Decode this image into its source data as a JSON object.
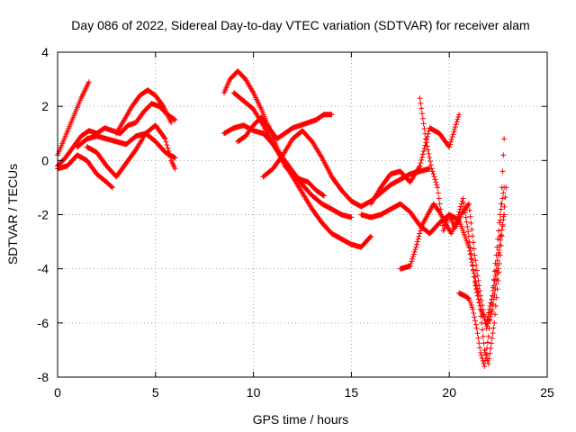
{
  "chart_data": {
    "type": "scatter",
    "title": "Day 086 of 2022, Sidereal Day-to-day VTEC variation (SDTVAR) for receiver alam",
    "xlabel": "GPS time / hours",
    "ylabel": "SDTVAR / TECUs",
    "xlim": [
      0,
      25
    ],
    "ylim": [
      -8,
      4
    ],
    "x_ticks": [
      "0",
      "5",
      "10",
      "15",
      "20",
      "25"
    ],
    "y_ticks": [
      "-8",
      "-6",
      "-4",
      "-2",
      "0",
      "2",
      "4"
    ],
    "grid": true,
    "marker": "+",
    "color": "#ff0000",
    "series": [
      {
        "segments": [
          {
            "x": [
              0.0,
              0.4,
              0.8,
              1.2,
              1.6
            ],
            "y": [
              0.2,
              0.9,
              1.6,
              2.3,
              2.9
            ]
          },
          {
            "x": [
              0.0,
              0.4,
              0.8,
              1.2,
              1.6,
              2.0,
              2.4,
              2.8,
              3.2,
              3.6,
              4.0,
              4.4,
              4.8,
              5.2,
              5.6,
              6.0
            ],
            "y": [
              -0.2,
              0.1,
              0.5,
              0.9,
              1.1,
              1.0,
              1.2,
              1.1,
              1.0,
              1.3,
              1.4,
              1.8,
              2.1,
              2.0,
              1.7,
              1.5
            ]
          },
          {
            "x": [
              0.0,
              0.5,
              1.0,
              1.5,
              2.0,
              2.5,
              2.8
            ],
            "y": [
              -0.3,
              -0.2,
              0.2,
              0.0,
              -0.5,
              -0.8,
              -1.0
            ]
          },
          {
            "x": [
              1.0,
              1.5,
              2.0,
              2.5,
              3.0,
              3.5,
              4.0,
              4.5,
              5.0,
              5.5,
              6.0
            ],
            "y": [
              0.5,
              0.8,
              0.9,
              0.8,
              0.7,
              0.6,
              0.9,
              1.0,
              0.7,
              0.3,
              0.1
            ]
          },
          {
            "x": [
              3.0,
              3.4,
              3.8,
              4.2,
              4.6,
              5.0,
              5.4,
              5.8
            ],
            "y": [
              1.0,
              1.5,
              2.0,
              2.4,
              2.6,
              2.4,
              2.0,
              1.4
            ]
          },
          {
            "x": [
              1.5,
              2.0,
              2.5,
              3.0,
              3.5,
              4.0,
              4.5,
              5.0,
              5.5,
              5.8,
              6.0
            ],
            "y": [
              0.5,
              0.3,
              -0.2,
              -0.6,
              -0.1,
              0.4,
              1.0,
              1.3,
              0.8,
              0.0,
              -0.3
            ]
          },
          {
            "x": [
              8.5,
              8.8,
              9.2,
              9.6,
              10.0,
              10.4,
              10.8,
              11.2,
              11.6,
              12.0,
              12.4,
              12.8,
              13.2,
              13.6,
              14.0
            ],
            "y": [
              2.5,
              3.0,
              3.3,
              3.0,
              2.5,
              1.9,
              1.2,
              0.8,
              1.0,
              1.2,
              1.3,
              1.4,
              1.5,
              1.7,
              1.7
            ]
          },
          {
            "x": [
              8.5,
              9.0,
              9.5,
              10.0,
              10.5,
              11.0,
              11.5,
              12.0,
              12.5,
              13.0,
              13.5,
              14.0,
              14.5,
              15.0
            ],
            "y": [
              1.0,
              1.2,
              1.3,
              1.1,
              1.0,
              0.6,
              0.1,
              -0.4,
              -0.9,
              -1.3,
              -1.6,
              -1.8,
              -2.0,
              -2.1
            ]
          },
          {
            "x": [
              9.0,
              9.5,
              10.0,
              10.5,
              11.0,
              11.5,
              12.0,
              12.5,
              13.0,
              13.5,
              14.0,
              14.5,
              15.0,
              15.5,
              16.0
            ],
            "y": [
              2.5,
              2.2,
              1.9,
              1.3,
              0.6,
              0.0,
              -0.6,
              -1.2,
              -1.8,
              -2.3,
              -2.7,
              -2.9,
              -3.1,
              -3.2,
              -2.8
            ]
          },
          {
            "x": [
              9.2,
              9.6,
              10.0,
              10.4,
              10.8,
              11.2,
              11.6,
              12.0,
              12.4,
              12.8,
              13.2,
              13.6
            ],
            "y": [
              0.7,
              0.9,
              1.3,
              1.6,
              1.2,
              0.5,
              -0.2,
              -0.5,
              -0.7,
              -0.8,
              -1.1,
              -1.3
            ]
          },
          {
            "x": [
              10.5,
              11.0,
              11.5,
              12.0,
              12.5,
              13.0,
              13.5,
              14.0,
              14.5,
              15.0,
              15.5,
              16.0,
              16.5,
              17.0,
              17.5,
              18.0,
              18.5,
              19.0
            ],
            "y": [
              -0.6,
              -0.3,
              0.2,
              0.8,
              1.1,
              0.7,
              0.1,
              -0.6,
              -1.1,
              -1.5,
              -1.7,
              -1.5,
              -1.2,
              -0.9,
              -0.7,
              -0.5,
              -0.4,
              -0.3
            ]
          },
          {
            "x": [
              15.5,
              16.0,
              16.5,
              17.0,
              17.5,
              18.0,
              18.5,
              19.0,
              19.5,
              20.0,
              20.5,
              21.0,
              21.5,
              21.8,
              22.0,
              22.3,
              22.6,
              22.9
            ],
            "y": [
              -2.0,
              -2.1,
              -2.0,
              -1.8,
              -1.6,
              -1.9,
              -2.4,
              -2.7,
              -2.3,
              -2.0,
              -2.2,
              -3.2,
              -5.0,
              -7.0,
              -7.5,
              -6.0,
              -3.5,
              -1.0
            ]
          },
          {
            "x": [
              16.0,
              16.5,
              17.0,
              17.5,
              18.0,
              18.5,
              19.0,
              19.5,
              20.0,
              20.5
            ],
            "y": [
              -1.6,
              -1.0,
              -0.5,
              -0.4,
              -0.8,
              -0.2,
              1.2,
              1.0,
              0.5,
              1.7
            ]
          },
          {
            "x": [
              17.5,
              18.0,
              18.3,
              18.6,
              18.9,
              19.2,
              19.5,
              19.8,
              20.1,
              20.4,
              20.7,
              21.0,
              21.3,
              21.6,
              21.9,
              22.2,
              22.5,
              22.8
            ],
            "y": [
              -4.0,
              -3.9,
              -3.2,
              -2.4,
              -2.0,
              -1.6,
              -1.9,
              -2.3,
              -2.7,
              -2.2,
              -1.4,
              -2.8,
              -4.5,
              -5.5,
              -6.0,
              -5.0,
              -3.5,
              -2.0
            ]
          },
          {
            "x": [
              18.5,
              18.8,
              19.1,
              19.4,
              19.7,
              20.0,
              20.3,
              20.6,
              21.0,
              21.3,
              21.6,
              21.9,
              22.2,
              22.5,
              22.8
            ],
            "y": [
              2.3,
              0.8,
              -0.3,
              -1.0,
              -2.6,
              -2.0,
              -2.5,
              -2.0,
              -1.6,
              -3.5,
              -5.0,
              -6.2,
              -5.5,
              -4.0,
              0.8
            ]
          },
          {
            "x": [
              20.5,
              20.8,
              21.0,
              21.2,
              21.4,
              21.6,
              21.8,
              22.0,
              22.2,
              22.4,
              22.6,
              22.8
            ],
            "y": [
              -4.9,
              -5.0,
              -5.1,
              -5.5,
              -6.2,
              -7.1,
              -7.6,
              -6.5,
              -5.0,
              -3.5,
              -2.0,
              -1.0
            ]
          }
        ]
      }
    ]
  }
}
